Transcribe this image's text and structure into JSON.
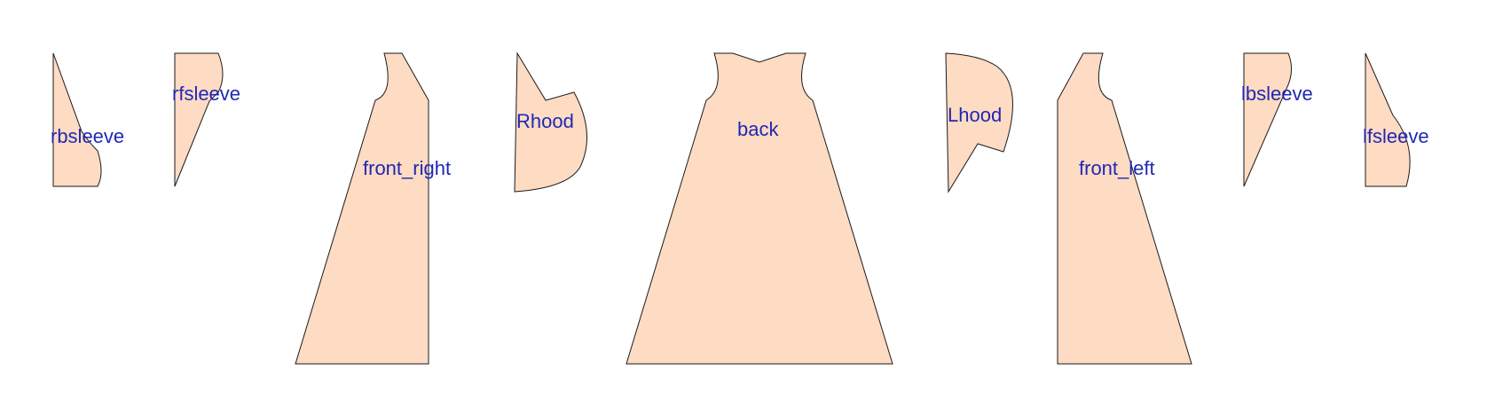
{
  "diagram": {
    "colors": {
      "panel_fill": "#fedbc3",
      "panel_stroke": "#1a1a1a",
      "label_text": "#1f28b4",
      "background": "#ffffff"
    },
    "panels": [
      {
        "id": "rbsleeve",
        "label": "rbsleeve"
      },
      {
        "id": "rfsleeve",
        "label": "rfsleeve"
      },
      {
        "id": "front_right",
        "label": "front_right"
      },
      {
        "id": "rhood",
        "label": "Rhood"
      },
      {
        "id": "back",
        "label": "back"
      },
      {
        "id": "lhood",
        "label": "Lhood"
      },
      {
        "id": "front_left",
        "label": "front_left"
      },
      {
        "id": "lbsleeve",
        "label": "lbsleeve"
      },
      {
        "id": "lfsleeve",
        "label": "lfsleeve"
      }
    ]
  }
}
